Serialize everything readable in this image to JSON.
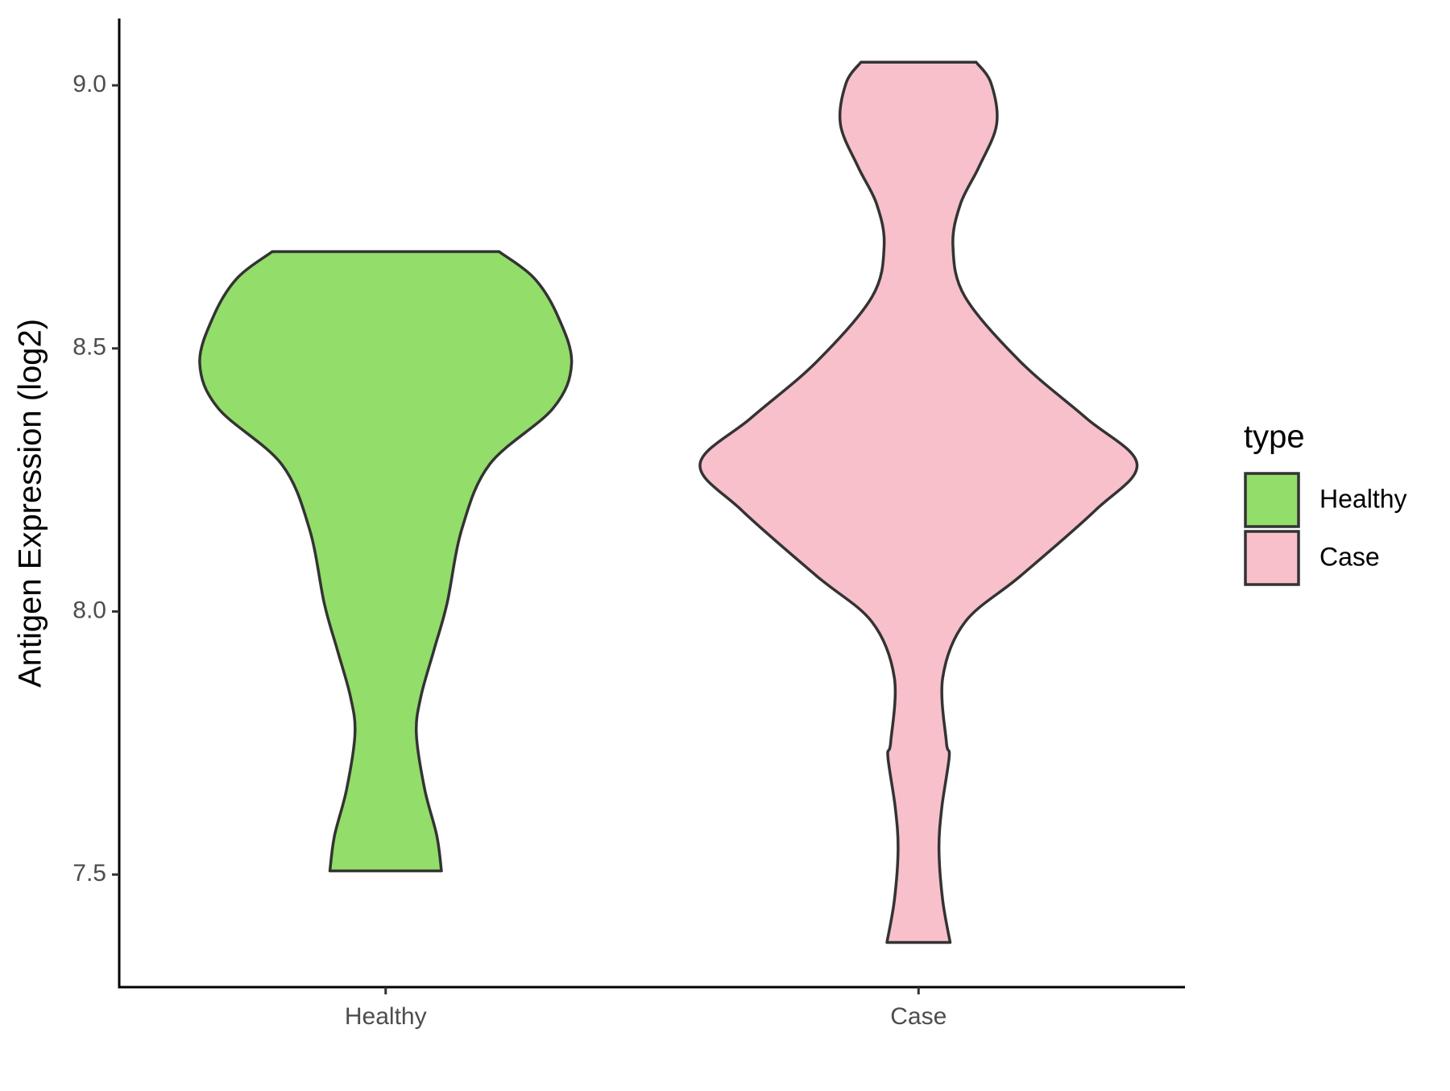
{
  "chart_data": {
    "type": "violin",
    "y_label": "Antigen Expression (log2)",
    "categories": [
      "Healthy",
      "Case"
    ],
    "legend_title": "type",
    "legend_position": "right",
    "ylim": [
      7.286,
      9.127
    ],
    "yticks": [
      {
        "value": 7.5,
        "label": "7.5"
      },
      {
        "value": 8,
        "label": "8.0"
      },
      {
        "value": 8.5,
        "label": "8.5"
      },
      {
        "value": 9,
        "label": "9.0"
      }
    ],
    "series": [
      {
        "name": "Healthy",
        "color": "#93dd6a",
        "y": [
          8.684,
          8.633,
          8.562,
          8.472,
          8.386,
          8.28,
          8.157,
          8.015,
          7.927,
          7.839,
          7.768,
          7.662,
          7.574,
          7.507
        ],
        "widths": [
          122,
          160,
          185,
          200,
          180,
          112,
          82,
          66,
          52,
          38,
          33,
          42,
          55,
          60
        ]
      },
      {
        "name": "Case",
        "color": "#f7c0cb",
        "y": [
          9.044,
          9.004,
          8.926,
          8.845,
          8.774,
          8.695,
          8.598,
          8.474,
          8.368,
          8.28,
          8.192,
          8.068,
          7.98,
          7.874,
          7.751,
          7.724,
          7.627,
          7.548,
          7.451,
          7.371
        ],
        "widths": [
          62,
          78,
          84,
          65,
          45,
          37,
          50,
          110,
          180,
          235,
          190,
          110,
          50,
          26,
          30,
          33,
          25,
          22,
          26,
          34
        ]
      }
    ]
  }
}
